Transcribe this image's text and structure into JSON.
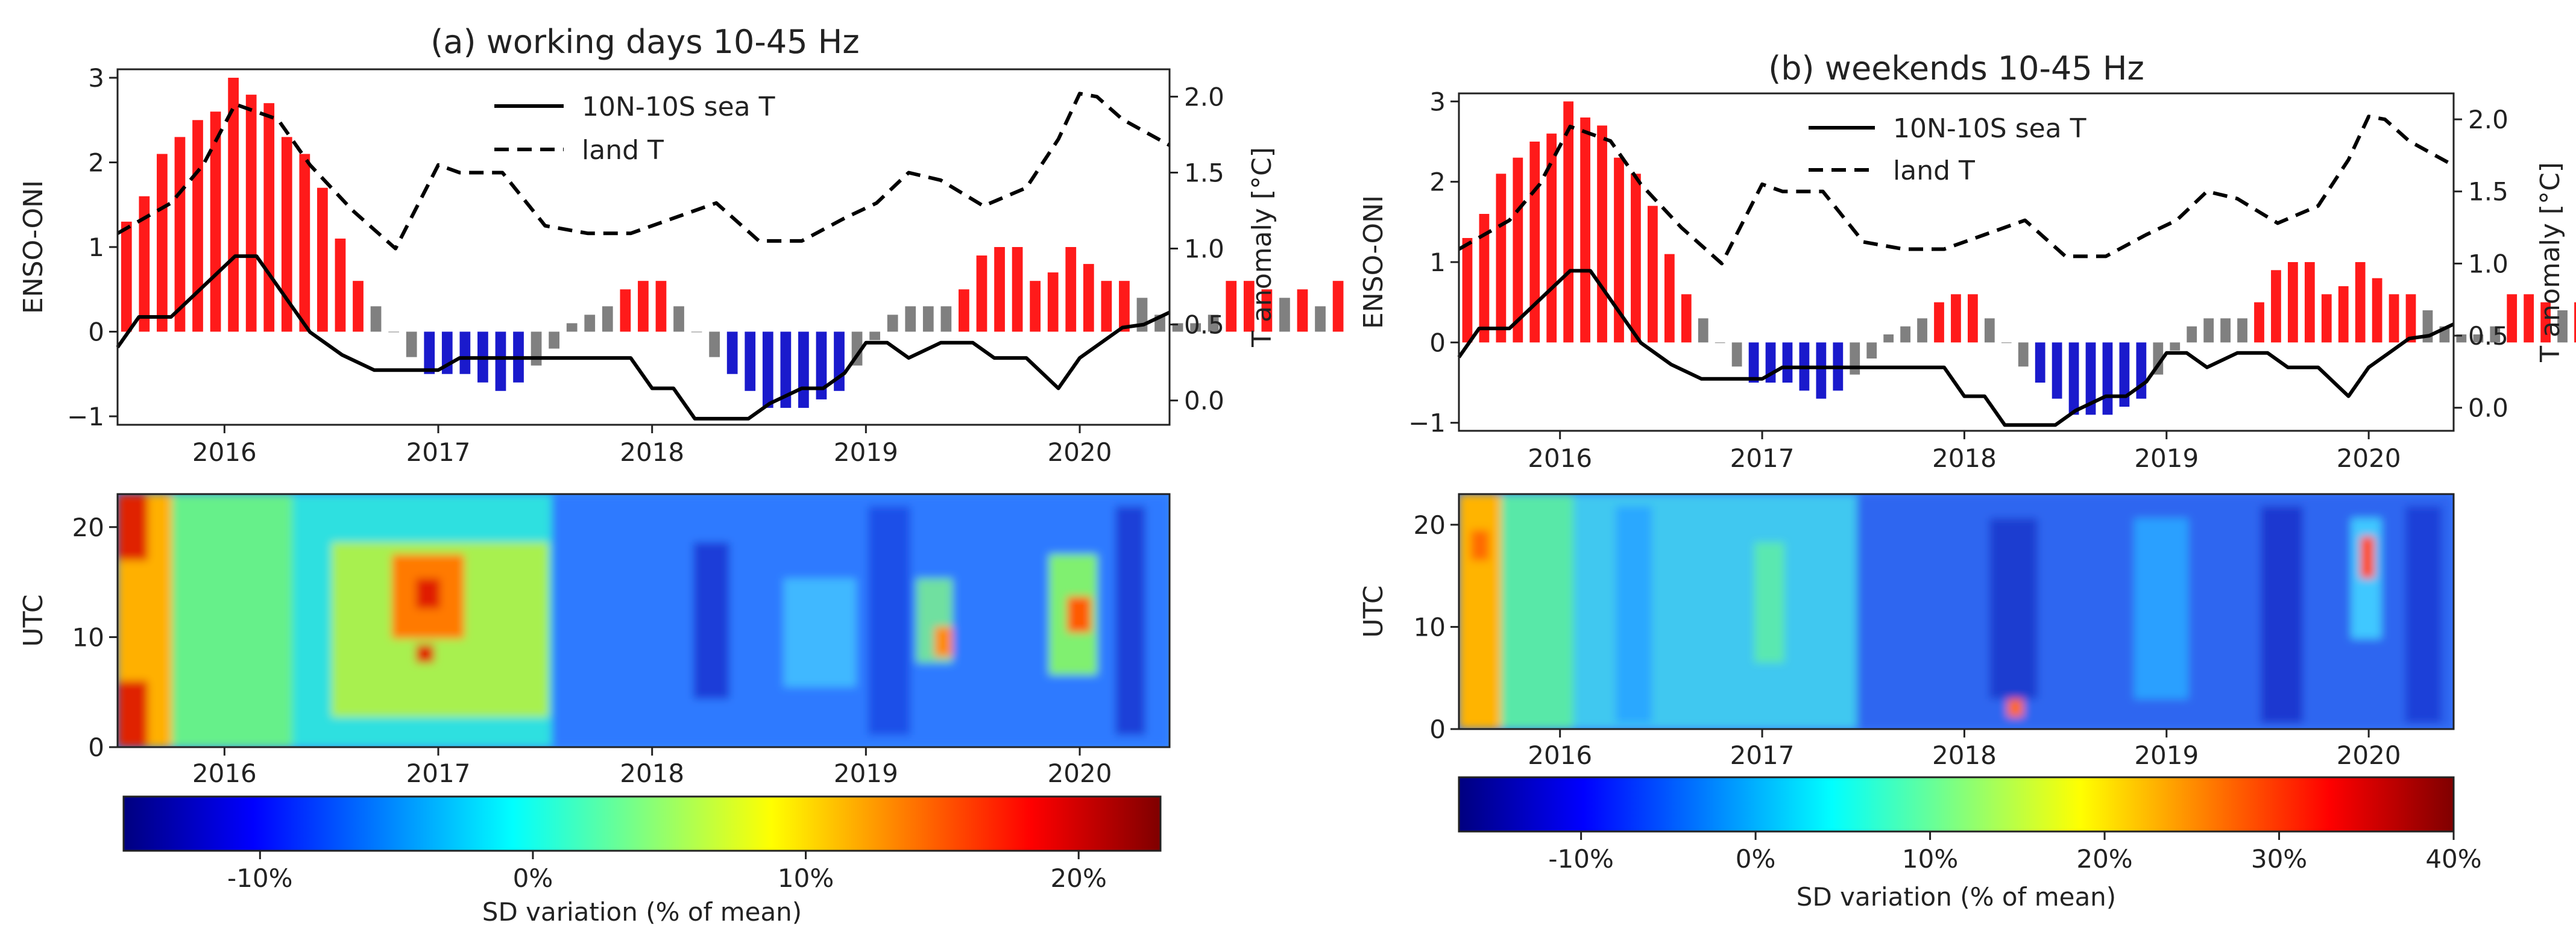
{
  "chart_data": [
    {
      "id": "a",
      "type": "bar",
      "title": "(a) working days 10-45 Hz",
      "ylabel": "ENSO-ONI",
      "y2label": "T anomaly [°C]",
      "ylim": [
        -1.1,
        3.1
      ],
      "y2lim": [
        -0.16,
        2.18
      ],
      "xlim": [
        2015.5,
        2020.42
      ],
      "yticks": [
        "−1",
        "0",
        "1",
        "2",
        "3"
      ],
      "y2ticks": [
        "0.0",
        "0.5",
        "1.0",
        "1.5",
        "2.0"
      ],
      "xticks": [
        "2016",
        "2017",
        "2018",
        "2019",
        "2020"
      ],
      "bar_colors": {
        "el_nino": "#ff1a1a",
        "la_nina": "#1a1acc",
        "neutral": "#808080"
      },
      "enso_months_start": 2015.5,
      "enso_oni": [
        1.3,
        1.6,
        2.1,
        2.3,
        2.5,
        2.6,
        3.0,
        2.8,
        2.7,
        2.3,
        2.1,
        1.7,
        1.1,
        0.6,
        0.3,
        0.0,
        -0.3,
        -0.5,
        -0.5,
        -0.5,
        -0.6,
        -0.7,
        -0.6,
        -0.4,
        -0.2,
        0.1,
        0.2,
        0.3,
        0.5,
        0.6,
        0.6,
        0.3,
        0.0,
        -0.3,
        -0.5,
        -0.7,
        -0.9,
        -0.9,
        -0.9,
        -0.8,
        -0.7,
        -0.4,
        -0.1,
        0.2,
        0.3,
        0.3,
        0.3,
        0.5,
        0.9,
        1.0,
        1.0,
        0.6,
        0.7,
        1.0,
        0.8,
        0.6,
        0.6,
        0.4,
        0.2,
        0.1,
        0.1,
        0.2,
        0.6,
        0.6,
        0.5,
        0.4,
        0.5,
        0.3,
        0.6
      ],
      "series": [
        {
          "name": "10N-10S sea T",
          "style": "solid",
          "x": [
            2015.5,
            2015.6,
            2015.75,
            2015.9,
            2016.05,
            2016.15,
            2016.25,
            2016.4,
            2016.55,
            2016.7,
            2016.85,
            2017.0,
            2017.1,
            2017.2,
            2017.35,
            2017.5,
            2017.65,
            2017.8,
            2017.9,
            2018.0,
            2018.1,
            2018.2,
            2018.35,
            2018.45,
            2018.55,
            2018.7,
            2018.8,
            2018.9,
            2019.0,
            2019.1,
            2019.2,
            2019.35,
            2019.5,
            2019.6,
            2019.75,
            2019.9,
            2020.0,
            2020.1,
            2020.2,
            2020.3,
            2020.42
          ],
          "y": [
            0.35,
            0.55,
            0.55,
            0.75,
            0.95,
            0.95,
            0.75,
            0.45,
            0.3,
            0.2,
            0.2,
            0.2,
            0.28,
            0.28,
            0.28,
            0.28,
            0.28,
            0.28,
            0.28,
            0.08,
            0.08,
            -0.12,
            -0.12,
            -0.12,
            -0.02,
            0.08,
            0.08,
            0.18,
            0.38,
            0.38,
            0.28,
            0.38,
            0.38,
            0.28,
            0.28,
            0.08,
            0.28,
            0.38,
            0.48,
            0.5,
            0.58
          ]
        },
        {
          "name": "land T",
          "style": "dashed",
          "x": [
            2015.5,
            2015.6,
            2015.75,
            2015.9,
            2016.05,
            2016.15,
            2016.25,
            2016.4,
            2016.6,
            2016.8,
            2017.0,
            2017.1,
            2017.3,
            2017.5,
            2017.7,
            2017.9,
            2018.1,
            2018.3,
            2018.5,
            2018.7,
            2018.9,
            2019.05,
            2019.2,
            2019.35,
            2019.55,
            2019.75,
            2019.9,
            2020.0,
            2020.08,
            2020.2,
            2020.42
          ],
          "y": [
            1.1,
            1.18,
            1.3,
            1.55,
            1.95,
            1.9,
            1.85,
            1.55,
            1.25,
            1.0,
            1.55,
            1.5,
            1.5,
            1.15,
            1.1,
            1.1,
            1.2,
            1.3,
            1.05,
            1.05,
            1.2,
            1.3,
            1.5,
            1.45,
            1.28,
            1.4,
            1.72,
            2.02,
            2.0,
            1.85,
            1.68
          ]
        }
      ],
      "heatmap": {
        "ylabel": "UTC",
        "yticks": [
          "0",
          "10",
          "20"
        ],
        "xticks": [
          "2016",
          "2017",
          "2018",
          "2019",
          "2020"
        ],
        "colorbar": {
          "ticks": [
            "-10%",
            "0%",
            "10%",
            "20%"
          ],
          "vmin": -15,
          "vmax": 23,
          "label": "SD variation (% of mean)"
        }
      }
    },
    {
      "id": "b",
      "type": "bar",
      "title": "(b) weekends 10-45 Hz",
      "ylabel": "ENSO-ONI",
      "y2label": "T anomaly [°C]",
      "ylim": [
        -1.1,
        3.1
      ],
      "y2lim": [
        -0.16,
        2.18
      ],
      "xlim": [
        2015.5,
        2020.42
      ],
      "yticks": [
        "−1",
        "0",
        "1",
        "2",
        "3"
      ],
      "y2ticks": [
        "0.0",
        "0.5",
        "1.0",
        "1.5",
        "2.0"
      ],
      "xticks": [
        "2016",
        "2017",
        "2018",
        "2019",
        "2020"
      ],
      "bar_colors": {
        "el_nino": "#ff1a1a",
        "la_nina": "#1a1acc",
        "neutral": "#808080"
      },
      "enso_months_start": 2015.5,
      "enso_oni": [
        1.3,
        1.6,
        2.1,
        2.3,
        2.5,
        2.6,
        3.0,
        2.8,
        2.7,
        2.3,
        2.1,
        1.7,
        1.1,
        0.6,
        0.3,
        0.0,
        -0.3,
        -0.5,
        -0.5,
        -0.5,
        -0.6,
        -0.7,
        -0.6,
        -0.4,
        -0.2,
        0.1,
        0.2,
        0.3,
        0.5,
        0.6,
        0.6,
        0.3,
        0.0,
        -0.3,
        -0.5,
        -0.7,
        -0.9,
        -0.9,
        -0.9,
        -0.8,
        -0.7,
        -0.4,
        -0.1,
        0.2,
        0.3,
        0.3,
        0.3,
        0.5,
        0.9,
        1.0,
        1.0,
        0.6,
        0.7,
        1.0,
        0.8,
        0.6,
        0.6,
        0.4,
        0.2,
        0.1,
        0.1,
        0.2,
        0.6,
        0.6,
        0.5,
        0.4,
        0.5,
        0.3,
        0.6
      ],
      "series": [
        {
          "name": "10N-10S sea T",
          "style": "solid",
          "x": [
            2015.5,
            2015.6,
            2015.75,
            2015.9,
            2016.05,
            2016.15,
            2016.25,
            2016.4,
            2016.55,
            2016.7,
            2016.85,
            2017.0,
            2017.1,
            2017.2,
            2017.35,
            2017.5,
            2017.65,
            2017.8,
            2017.9,
            2018.0,
            2018.1,
            2018.2,
            2018.35,
            2018.45,
            2018.55,
            2018.7,
            2018.8,
            2018.9,
            2019.0,
            2019.1,
            2019.2,
            2019.35,
            2019.5,
            2019.6,
            2019.75,
            2019.9,
            2020.0,
            2020.1,
            2020.2,
            2020.3,
            2020.42
          ],
          "y": [
            0.35,
            0.55,
            0.55,
            0.75,
            0.95,
            0.95,
            0.75,
            0.45,
            0.3,
            0.2,
            0.2,
            0.2,
            0.28,
            0.28,
            0.28,
            0.28,
            0.28,
            0.28,
            0.28,
            0.08,
            0.08,
            -0.12,
            -0.12,
            -0.12,
            -0.02,
            0.08,
            0.08,
            0.18,
            0.38,
            0.38,
            0.28,
            0.38,
            0.38,
            0.28,
            0.28,
            0.08,
            0.28,
            0.38,
            0.48,
            0.5,
            0.58
          ]
        },
        {
          "name": "land T",
          "style": "dashed",
          "x": [
            2015.5,
            2015.6,
            2015.75,
            2015.9,
            2016.05,
            2016.15,
            2016.25,
            2016.4,
            2016.6,
            2016.8,
            2017.0,
            2017.1,
            2017.3,
            2017.5,
            2017.7,
            2017.9,
            2018.1,
            2018.3,
            2018.5,
            2018.7,
            2018.9,
            2019.05,
            2019.2,
            2019.35,
            2019.55,
            2019.75,
            2019.9,
            2020.0,
            2020.08,
            2020.2,
            2020.42
          ],
          "y": [
            1.1,
            1.18,
            1.3,
            1.55,
            1.95,
            1.9,
            1.85,
            1.55,
            1.25,
            1.0,
            1.55,
            1.5,
            1.5,
            1.15,
            1.1,
            1.1,
            1.2,
            1.3,
            1.05,
            1.05,
            1.2,
            1.3,
            1.5,
            1.45,
            1.28,
            1.4,
            1.72,
            2.02,
            2.0,
            1.85,
            1.68
          ]
        }
      ],
      "heatmap": {
        "ylabel": "UTC",
        "yticks": [
          "0",
          "10",
          "20"
        ],
        "xticks": [
          "2016",
          "2017",
          "2018",
          "2019",
          "2020"
        ],
        "colorbar": {
          "ticks": [
            "-10%",
            "0%",
            "10%",
            "20%",
            "30%",
            "40%"
          ],
          "vmin": -17,
          "vmax": 40,
          "label": "SD variation (% of mean)"
        }
      }
    }
  ]
}
